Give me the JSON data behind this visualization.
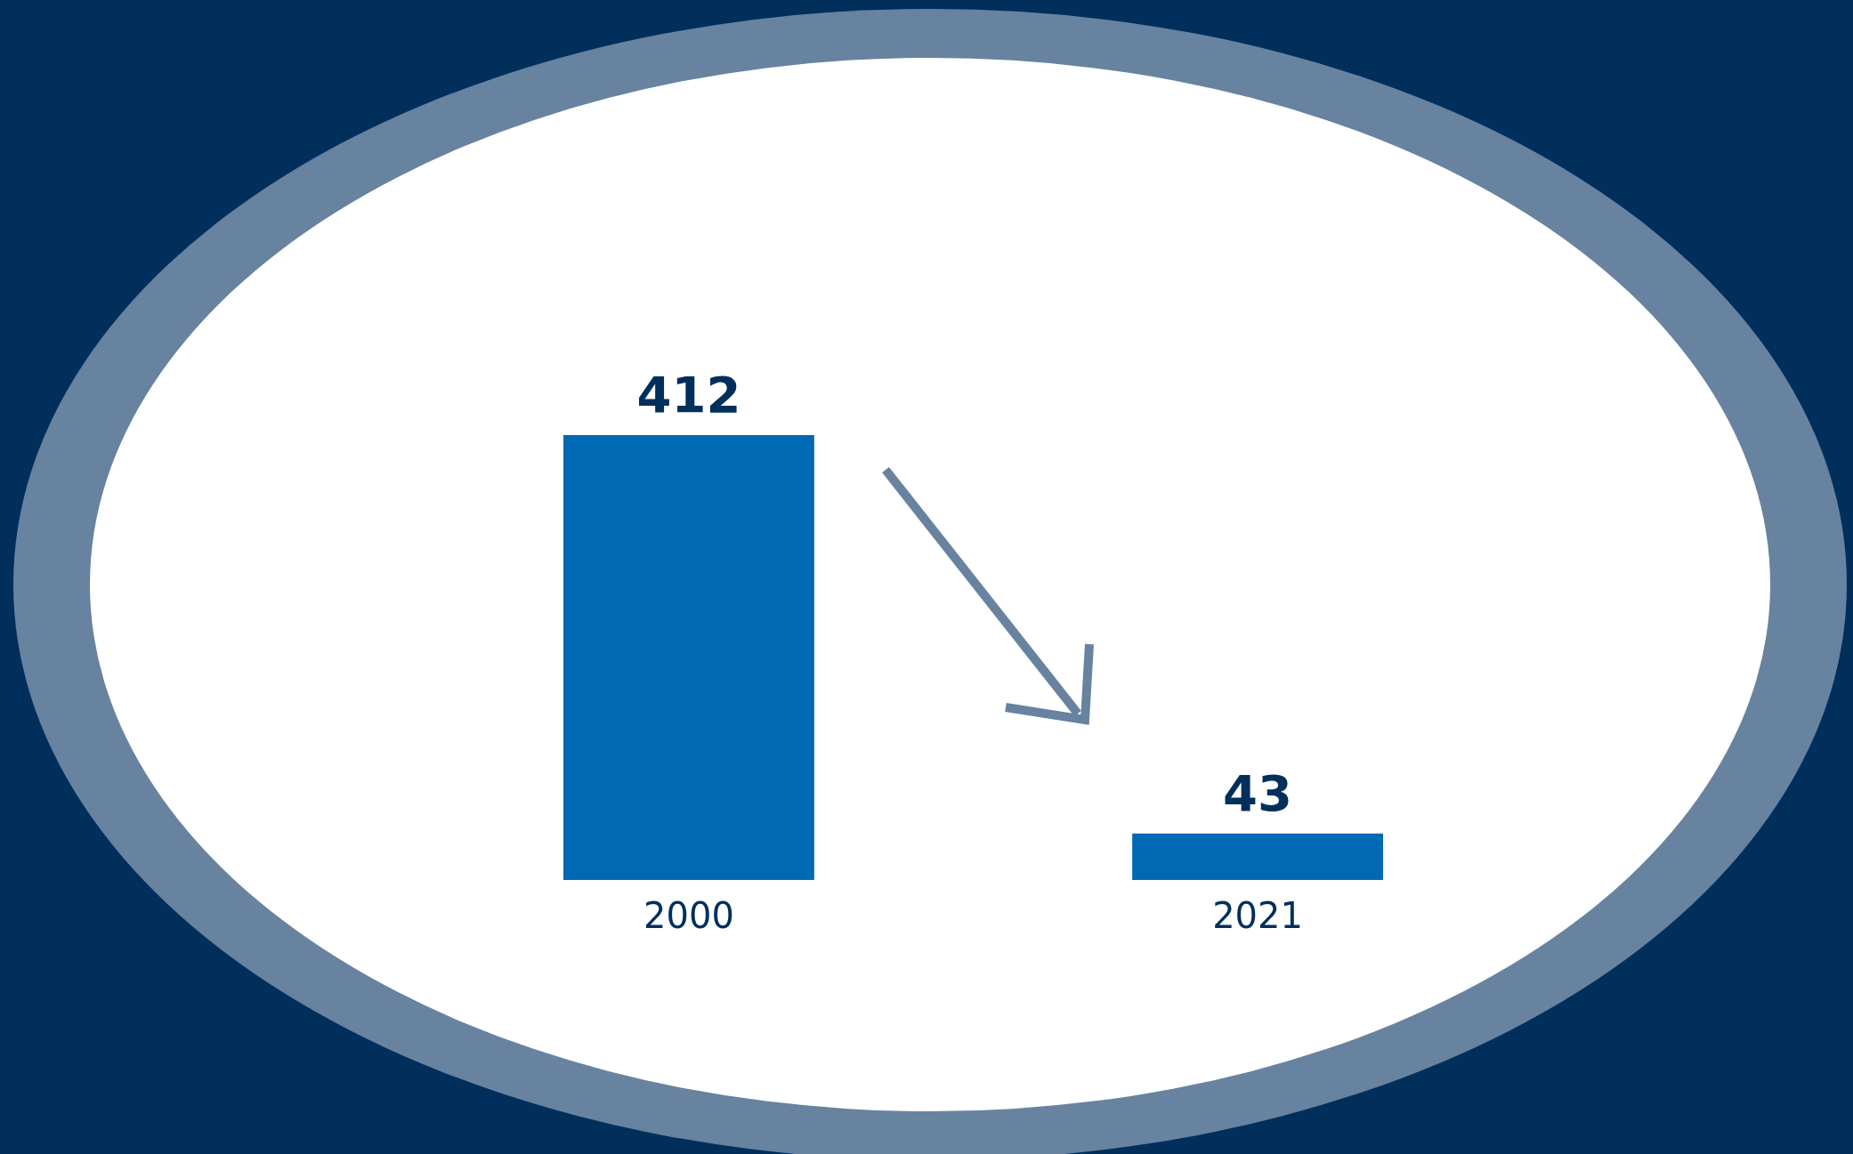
{
  "chart_data": {
    "type": "bar",
    "categories": [
      "2000",
      "2021"
    ],
    "values": [
      412,
      43
    ],
    "color": "#0069b4",
    "data_labels": true
  }
}
